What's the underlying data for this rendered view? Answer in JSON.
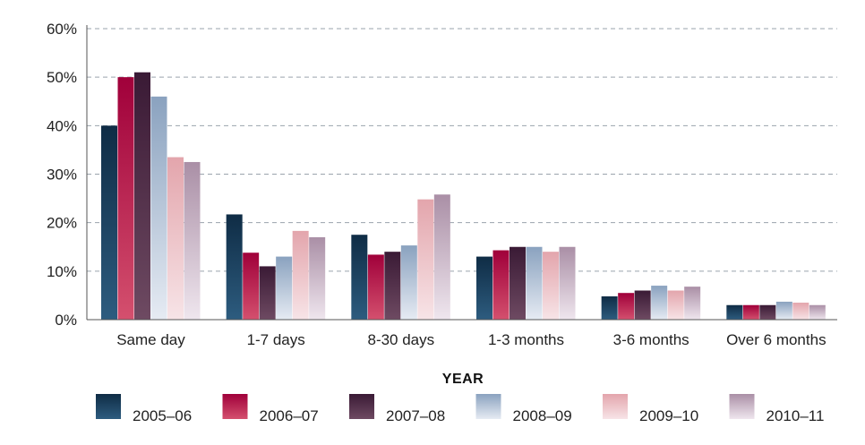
{
  "chart_data": {
    "type": "bar",
    "categories": [
      "Same day",
      "1-7 days",
      "8-30 days",
      "1-3 months",
      "3-6 months",
      "Over 6 months"
    ],
    "series": [
      {
        "name": "2005–06",
        "color_top": "#0f2c45",
        "color_bottom": "#2d5c7f",
        "values": [
          40,
          21.7,
          17.5,
          13,
          4.8,
          3
        ]
      },
      {
        "name": "2006–07",
        "color_top": "#a0003a",
        "color_bottom": "#d4506e",
        "values": [
          50,
          13.8,
          13.4,
          14.3,
          5.5,
          3
        ]
      },
      {
        "name": "2007–08",
        "color_top": "#3a1a35",
        "color_bottom": "#6e4a62",
        "values": [
          51,
          11,
          14,
          15,
          6,
          3
        ]
      },
      {
        "name": "2008–09",
        "color_top": "#8aa2bf",
        "color_bottom": "#e6ebf3",
        "values": [
          46,
          13,
          15.3,
          15,
          7,
          3.7
        ]
      },
      {
        "name": "2009–10",
        "color_top": "#e3a5ac",
        "color_bottom": "#f7e4e7",
        "values": [
          33.5,
          18.3,
          24.8,
          14,
          6,
          3.5
        ]
      },
      {
        "name": "2010–11",
        "color_top": "#aa8fa6",
        "color_bottom": "#efe6ee",
        "values": [
          32.5,
          17,
          25.8,
          15,
          6.8,
          3
        ]
      }
    ],
    "y_ticks": [
      "0%",
      "10%",
      "20%",
      "30%",
      "40%",
      "50%",
      "60%"
    ],
    "ylim": [
      0,
      60
    ],
    "grid": "dashed horizontal",
    "legend_title": "YEAR",
    "legend_position": "bottom"
  }
}
